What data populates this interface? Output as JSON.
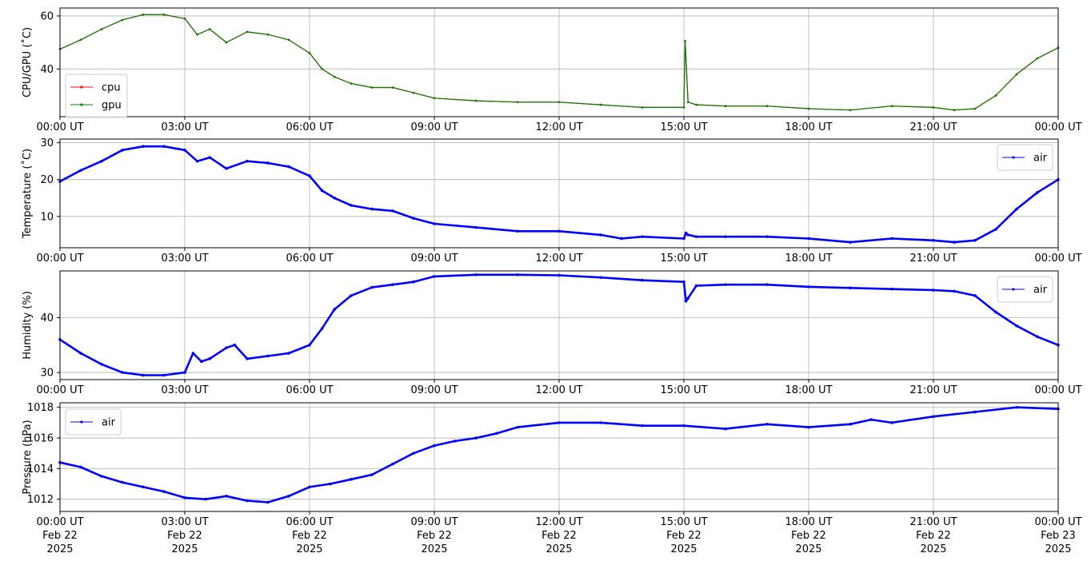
{
  "figure": {
    "x_ticks": [
      {
        "t": 0,
        "time": "00:00 UT",
        "date": "Feb 22",
        "year": "2025"
      },
      {
        "t": 3,
        "time": "03:00 UT",
        "date": "Feb 22",
        "year": "2025"
      },
      {
        "t": 6,
        "time": "06:00 UT",
        "date": "Feb 22",
        "year": "2025"
      },
      {
        "t": 9,
        "time": "09:00 UT",
        "date": "Feb 22",
        "year": "2025"
      },
      {
        "t": 12,
        "time": "12:00 UT",
        "date": "Feb 22",
        "year": "2025"
      },
      {
        "t": 15,
        "time": "15:00 UT",
        "date": "Feb 22",
        "year": "2025"
      },
      {
        "t": 18,
        "time": "18:00 UT",
        "date": "Feb 22",
        "year": "2025"
      },
      {
        "t": 21,
        "time": "21:00 UT",
        "date": "Feb 22",
        "year": "2025"
      },
      {
        "t": 24,
        "time": "00:00 UT",
        "date": "Feb 23",
        "year": "2025"
      }
    ],
    "colors": {
      "cpu": "#ff0000",
      "gpu": "#008000",
      "air": "#0000ff",
      "grid": "#b0b0b0"
    }
  },
  "chart_data": [
    {
      "type": "line",
      "ylabel": "CPU/GPU (˚C)",
      "ylim": [
        22,
        63
      ],
      "yticks": [
        40,
        60
      ],
      "grid": true,
      "legend_position": "lower-left",
      "x": [
        0,
        0.5,
        1,
        1.5,
        2,
        2.5,
        3,
        3.3,
        3.6,
        4,
        4.5,
        5,
        5.5,
        6,
        6.3,
        6.6,
        7,
        7.5,
        8,
        8.5,
        9,
        10,
        11,
        12,
        13,
        14,
        15,
        15.03,
        15.1,
        15.3,
        16,
        17,
        18,
        19,
        20,
        21,
        21.5,
        22,
        22.5,
        23,
        23.5,
        24
      ],
      "series": [
        {
          "name": "cpu",
          "values": [
            47.5,
            51,
            55,
            58.5,
            60.5,
            60.5,
            59,
            53,
            55,
            50,
            54,
            53,
            51,
            46,
            40,
            37,
            34.5,
            33,
            33,
            31,
            29,
            28,
            27.5,
            27.5,
            26.5,
            25.5,
            25.5,
            50.5,
            27.5,
            26.5,
            26,
            26,
            25,
            24.5,
            26,
            25.5,
            24.5,
            25,
            30,
            38,
            44,
            48
          ]
        },
        {
          "name": "gpu",
          "values": [
            47.5,
            51,
            55,
            58.5,
            60.5,
            60.5,
            59,
            53,
            55,
            50,
            54,
            53,
            51,
            46,
            40,
            37,
            34.5,
            33,
            33,
            31,
            29,
            28,
            27.5,
            27.5,
            26.5,
            25.5,
            25.5,
            50.5,
            27.5,
            26.5,
            26,
            26,
            25,
            24.5,
            26,
            25.5,
            24.5,
            25,
            30,
            38,
            44,
            48
          ]
        }
      ]
    },
    {
      "type": "line",
      "ylabel": "Temperature (˚C)",
      "ylim": [
        1.5,
        31
      ],
      "yticks": [
        10,
        20,
        30
      ],
      "grid": true,
      "legend_position": "upper-right",
      "x": [
        0,
        0.5,
        1,
        1.5,
        2,
        2.5,
        3,
        3.3,
        3.6,
        4,
        4.5,
        5,
        5.5,
        6,
        6.3,
        6.6,
        7,
        7.5,
        8,
        8.5,
        9,
        10,
        11,
        12,
        13,
        13.5,
        14,
        15,
        15.05,
        15.1,
        15.3,
        16,
        17,
        18,
        19,
        20,
        21,
        21.5,
        22,
        22.5,
        23,
        23.5,
        24
      ],
      "series": [
        {
          "name": "air",
          "values": [
            19.5,
            22.5,
            25,
            28,
            29,
            29,
            28,
            25,
            26,
            23,
            25,
            24.5,
            23.5,
            21,
            17,
            15,
            13,
            12,
            11.5,
            9.5,
            8,
            7,
            6,
            6,
            5,
            4,
            4.5,
            4,
            5.5,
            5,
            4.5,
            4.5,
            4.5,
            4,
            3,
            4,
            3.5,
            3,
            3.5,
            6.5,
            12,
            16.5,
            20
          ]
        }
      ]
    },
    {
      "type": "line",
      "ylabel": "Humidity (%)",
      "ylim": [
        28.7,
        48.5
      ],
      "yticks": [
        30,
        40
      ],
      "grid": true,
      "legend_position": "upper-right",
      "x": [
        0,
        0.5,
        1,
        1.5,
        2,
        2.5,
        3,
        3.2,
        3.4,
        3.6,
        4,
        4.2,
        4.5,
        5,
        5.5,
        6,
        6.3,
        6.6,
        7,
        7.5,
        8,
        8.5,
        9,
        10,
        11,
        12,
        13,
        14,
        15,
        15.05,
        15.1,
        15.3,
        16,
        17,
        18,
        19,
        20,
        21,
        21.5,
        22,
        22.5,
        23,
        23.5,
        24
      ],
      "series": [
        {
          "name": "air",
          "values": [
            36,
            33.5,
            31.5,
            30,
            29.5,
            29.5,
            30,
            33.5,
            32,
            32.5,
            34.5,
            35,
            32.5,
            33,
            33.5,
            35,
            38,
            41.5,
            44,
            45.5,
            46,
            46.5,
            47.5,
            47.8,
            47.8,
            47.7,
            47.3,
            46.8,
            46.5,
            43,
            43.5,
            45.8,
            46,
            46,
            45.6,
            45.4,
            45.2,
            45,
            44.8,
            44,
            41,
            38.5,
            36.5,
            35
          ]
        }
      ]
    },
    {
      "type": "line",
      "ylabel": "Pressure (hPa)",
      "ylim": [
        1011.2,
        1018.3
      ],
      "yticks": [
        1012,
        1014,
        1016,
        1018
      ],
      "grid": true,
      "legend_position": "upper-left",
      "x": [
        0,
        0.5,
        1,
        1.5,
        2,
        2.5,
        3,
        3.5,
        4,
        4.5,
        5,
        5.5,
        6,
        6.5,
        7,
        7.5,
        8,
        8.5,
        9,
        9.5,
        10,
        10.5,
        11,
        12,
        13,
        14,
        15,
        16,
        17,
        18,
        19,
        19.5,
        20,
        21,
        22,
        23,
        24
      ],
      "series": [
        {
          "name": "air",
          "values": [
            1014.4,
            1014.1,
            1013.5,
            1013.1,
            1012.8,
            1012.5,
            1012.1,
            1012.0,
            1012.2,
            1011.9,
            1011.8,
            1012.2,
            1012.8,
            1013,
            1013.3,
            1013.6,
            1014.3,
            1015,
            1015.5,
            1015.8,
            1016,
            1016.3,
            1016.7,
            1017,
            1017,
            1016.8,
            1016.8,
            1016.6,
            1016.9,
            1016.7,
            1016.9,
            1017.2,
            1017,
            1017.4,
            1017.7,
            1018,
            1017.9
          ]
        }
      ]
    }
  ]
}
